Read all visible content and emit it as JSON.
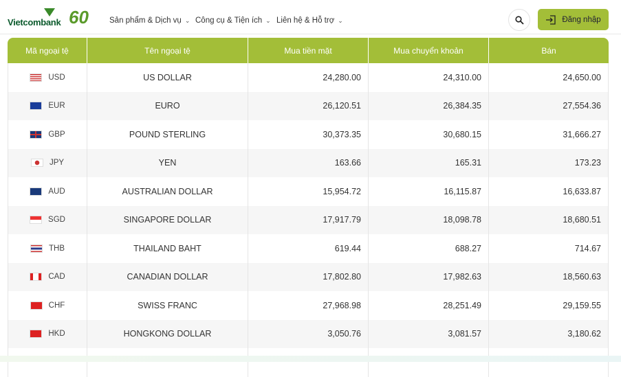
{
  "header": {
    "brand": "Vietcombank",
    "anniversary": "60",
    "nav": [
      "Sản phẩm & Dịch vụ",
      "Công cụ & Tiện ích",
      "Liên hệ & Hỗ trợ"
    ],
    "login": "Đăng nhập"
  },
  "table": {
    "columns": [
      "Mã ngoại tệ",
      "Tên ngoại tệ",
      "Mua tiền mặt",
      "Mua chuyển khoản",
      "Bán"
    ],
    "rows": [
      {
        "code": "USD",
        "name": "US DOLLAR",
        "cash": "24,280.00",
        "transfer": "24,310.00",
        "sell": "24,650.00",
        "flag": "us"
      },
      {
        "code": "EUR",
        "name": "EURO",
        "cash": "26,120.51",
        "transfer": "26,384.35",
        "sell": "27,554.36",
        "flag": "eu"
      },
      {
        "code": "GBP",
        "name": "POUND STERLING",
        "cash": "30,373.35",
        "transfer": "30,680.15",
        "sell": "31,666.27",
        "flag": "gb"
      },
      {
        "code": "JPY",
        "name": "YEN",
        "cash": "163.66",
        "transfer": "165.31",
        "sell": "173.23",
        "flag": "jp"
      },
      {
        "code": "AUD",
        "name": "AUSTRALIAN DOLLAR",
        "cash": "15,954.72",
        "transfer": "16,115.87",
        "sell": "16,633.87",
        "flag": "au"
      },
      {
        "code": "SGD",
        "name": "SINGAPORE DOLLAR",
        "cash": "17,917.79",
        "transfer": "18,098.78",
        "sell": "18,680.51",
        "flag": "sg"
      },
      {
        "code": "THB",
        "name": "THAILAND BAHT",
        "cash": "619.44",
        "transfer": "688.27",
        "sell": "714.67",
        "flag": "th"
      },
      {
        "code": "CAD",
        "name": "CANADIAN DOLLAR",
        "cash": "17,802.80",
        "transfer": "17,982.63",
        "sell": "18,560.63",
        "flag": "ca"
      },
      {
        "code": "CHF",
        "name": "SWISS FRANC",
        "cash": "27,968.98",
        "transfer": "28,251.49",
        "sell": "29,159.55",
        "flag": "ch"
      },
      {
        "code": "HKD",
        "name": "HONGKONG DOLLAR",
        "cash": "3,050.76",
        "transfer": "3,081.57",
        "sell": "3,180.62",
        "flag": "hk"
      }
    ]
  },
  "colors": {
    "accent": "#a3be38",
    "brand": "#0b5a2c"
  }
}
